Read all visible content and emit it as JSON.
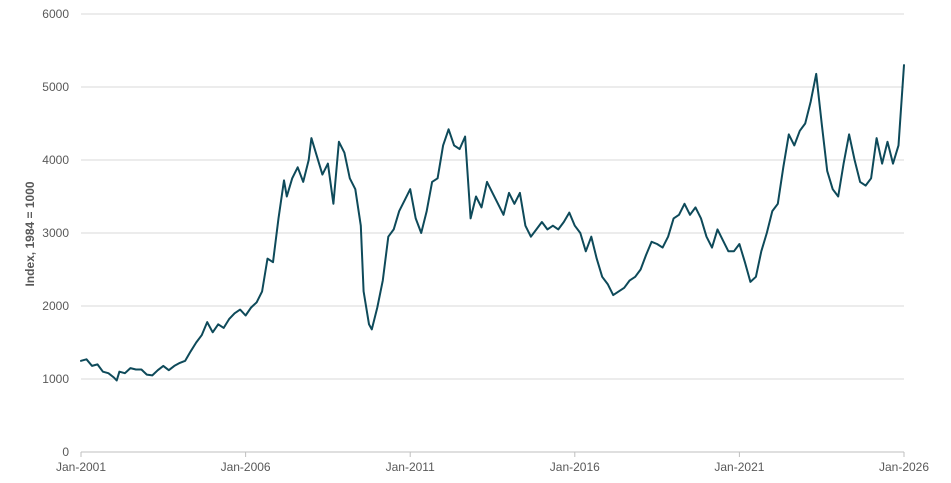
{
  "chart_data": {
    "type": "line",
    "ylabel": "Index, 1984 = 1000",
    "ylim": [
      0,
      6000
    ],
    "y_ticks": [
      0,
      1000,
      2000,
      3000,
      4000,
      5000,
      6000
    ],
    "y_tick_labels": [
      "0",
      "1000",
      "2000",
      "3000",
      "4000",
      "5000",
      "6000"
    ],
    "x_range": [
      "2001-01",
      "2026-01"
    ],
    "x_ticks": [
      "2001-01",
      "2006-01",
      "2011-01",
      "2016-01",
      "2021-01",
      "2026-01"
    ],
    "x_tick_labels": [
      "Jan-2001",
      "Jan-2006",
      "Jan-2011",
      "Jan-2016",
      "Jan-2021",
      "Jan-2026"
    ],
    "grid": true,
    "line_color": "#0e4a5a",
    "series": [
      {
        "points": [
          [
            "2001-01",
            1250
          ],
          [
            "2001-03",
            1270
          ],
          [
            "2001-05",
            1180
          ],
          [
            "2001-07",
            1200
          ],
          [
            "2001-09",
            1100
          ],
          [
            "2001-11",
            1080
          ],
          [
            "2002-01",
            1020
          ],
          [
            "2002-02",
            980
          ],
          [
            "2002-03",
            1100
          ],
          [
            "2002-05",
            1080
          ],
          [
            "2002-07",
            1150
          ],
          [
            "2002-09",
            1130
          ],
          [
            "2002-11",
            1130
          ],
          [
            "2003-01",
            1060
          ],
          [
            "2003-03",
            1050
          ],
          [
            "2003-05",
            1120
          ],
          [
            "2003-07",
            1180
          ],
          [
            "2003-09",
            1120
          ],
          [
            "2003-11",
            1180
          ],
          [
            "2004-01",
            1220
          ],
          [
            "2004-03",
            1250
          ],
          [
            "2004-05",
            1380
          ],
          [
            "2004-07",
            1500
          ],
          [
            "2004-09",
            1600
          ],
          [
            "2004-11",
            1780
          ],
          [
            "2005-01",
            1640
          ],
          [
            "2005-03",
            1750
          ],
          [
            "2005-05",
            1700
          ],
          [
            "2005-07",
            1820
          ],
          [
            "2005-09",
            1900
          ],
          [
            "2005-11",
            1950
          ],
          [
            "2006-01",
            1870
          ],
          [
            "2006-03",
            1980
          ],
          [
            "2006-05",
            2050
          ],
          [
            "2006-07",
            2200
          ],
          [
            "2006-09",
            2650
          ],
          [
            "2006-11",
            2600
          ],
          [
            "2007-01",
            3200
          ],
          [
            "2007-03",
            3720
          ],
          [
            "2007-04",
            3500
          ],
          [
            "2007-06",
            3750
          ],
          [
            "2007-08",
            3900
          ],
          [
            "2007-10",
            3700
          ],
          [
            "2007-12",
            4000
          ],
          [
            "2008-01",
            4300
          ],
          [
            "2008-03",
            4050
          ],
          [
            "2008-05",
            3800
          ],
          [
            "2008-07",
            3950
          ],
          [
            "2008-09",
            3400
          ],
          [
            "2008-11",
            4250
          ],
          [
            "2009-01",
            4100
          ],
          [
            "2009-03",
            3750
          ],
          [
            "2009-05",
            3600
          ],
          [
            "2009-07",
            3100
          ],
          [
            "2009-08",
            2200
          ],
          [
            "2009-10",
            1750
          ],
          [
            "2009-11",
            1680
          ],
          [
            "2010-01",
            1980
          ],
          [
            "2010-03",
            2350
          ],
          [
            "2010-05",
            2950
          ],
          [
            "2010-07",
            3050
          ],
          [
            "2010-09",
            3300
          ],
          [
            "2010-11",
            3450
          ],
          [
            "2011-01",
            3600
          ],
          [
            "2011-03",
            3200
          ],
          [
            "2011-05",
            3000
          ],
          [
            "2011-07",
            3300
          ],
          [
            "2011-09",
            3700
          ],
          [
            "2011-11",
            3750
          ],
          [
            "2012-01",
            4200
          ],
          [
            "2012-03",
            4420
          ],
          [
            "2012-05",
            4200
          ],
          [
            "2012-07",
            4150
          ],
          [
            "2012-09",
            4320
          ],
          [
            "2012-11",
            3200
          ],
          [
            "2013-01",
            3500
          ],
          [
            "2013-03",
            3350
          ],
          [
            "2013-05",
            3700
          ],
          [
            "2013-07",
            3550
          ],
          [
            "2013-09",
            3400
          ],
          [
            "2013-11",
            3250
          ],
          [
            "2014-01",
            3550
          ],
          [
            "2014-03",
            3400
          ],
          [
            "2014-05",
            3550
          ],
          [
            "2014-07",
            3100
          ],
          [
            "2014-09",
            2950
          ],
          [
            "2014-11",
            3050
          ],
          [
            "2015-01",
            3150
          ],
          [
            "2015-03",
            3050
          ],
          [
            "2015-05",
            3100
          ],
          [
            "2015-07",
            3050
          ],
          [
            "2015-09",
            3150
          ],
          [
            "2015-11",
            3280
          ],
          [
            "2016-01",
            3100
          ],
          [
            "2016-03",
            3000
          ],
          [
            "2016-05",
            2750
          ],
          [
            "2016-07",
            2950
          ],
          [
            "2016-09",
            2650
          ],
          [
            "2016-11",
            2400
          ],
          [
            "2017-01",
            2300
          ],
          [
            "2017-03",
            2150
          ],
          [
            "2017-05",
            2200
          ],
          [
            "2017-07",
            2250
          ],
          [
            "2017-09",
            2350
          ],
          [
            "2017-11",
            2400
          ],
          [
            "2018-01",
            2500
          ],
          [
            "2018-03",
            2700
          ],
          [
            "2018-05",
            2880
          ],
          [
            "2018-07",
            2850
          ],
          [
            "2018-09",
            2800
          ],
          [
            "2018-11",
            2950
          ],
          [
            "2019-01",
            3200
          ],
          [
            "2019-03",
            3250
          ],
          [
            "2019-05",
            3400
          ],
          [
            "2019-07",
            3250
          ],
          [
            "2019-09",
            3350
          ],
          [
            "2019-11",
            3200
          ],
          [
            "2020-01",
            2950
          ],
          [
            "2020-03",
            2800
          ],
          [
            "2020-05",
            3050
          ],
          [
            "2020-07",
            2900
          ],
          [
            "2020-09",
            2750
          ],
          [
            "2020-11",
            2750
          ],
          [
            "2021-01",
            2850
          ],
          [
            "2021-03",
            2600
          ],
          [
            "2021-05",
            2330
          ],
          [
            "2021-07",
            2400
          ],
          [
            "2021-09",
            2750
          ],
          [
            "2021-11",
            3000
          ],
          [
            "2022-01",
            3300
          ],
          [
            "2022-03",
            3400
          ],
          [
            "2022-05",
            3900
          ],
          [
            "2022-07",
            4350
          ],
          [
            "2022-09",
            4200
          ],
          [
            "2022-11",
            4400
          ],
          [
            "2023-01",
            4500
          ],
          [
            "2023-03",
            4800
          ],
          [
            "2023-05",
            5180
          ],
          [
            "2023-07",
            4500
          ],
          [
            "2023-09",
            3850
          ],
          [
            "2023-11",
            3600
          ],
          [
            "2024-01",
            3500
          ],
          [
            "2024-03",
            3950
          ],
          [
            "2024-05",
            4350
          ],
          [
            "2024-07",
            4000
          ],
          [
            "2024-09",
            3700
          ],
          [
            "2024-11",
            3650
          ],
          [
            "2025-01",
            3750
          ],
          [
            "2025-03",
            4300
          ],
          [
            "2025-05",
            3950
          ],
          [
            "2025-07",
            4250
          ],
          [
            "2025-09",
            3950
          ],
          [
            "2025-11",
            4200
          ],
          [
            "2026-01",
            5300
          ]
        ]
      }
    ]
  }
}
